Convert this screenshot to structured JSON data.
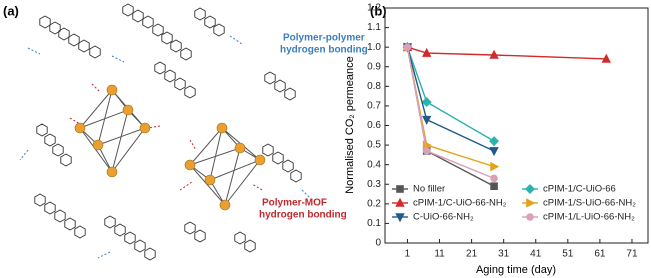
{
  "panel_a": {
    "label": "(a)",
    "annotations": [
      {
        "lines": [
          "Polymer-polymer",
          "hydrogen bonding"
        ],
        "color": "#3a7ec0"
      },
      {
        "lines": [
          "Polymer-MOF",
          "hydrogen bonding"
        ],
        "color": "#c0282c"
      }
    ]
  },
  "chart_data": {
    "type": "line",
    "label": "(b)",
    "x_label": "Aging time (day)",
    "y_label": "Normalised CO₂ permeance",
    "xlim": [
      -6,
      76
    ],
    "xticks": [
      1,
      11,
      21,
      31,
      41,
      51,
      61,
      71
    ],
    "ylim": [
      0,
      1.2
    ],
    "yticks": [
      0,
      0.1,
      0.2,
      0.3,
      0.4,
      0.5,
      0.6,
      0.7,
      0.8,
      0.9,
      {
        "value": 1,
        "label": "1.0"
      },
      1.1,
      1.2
    ],
    "series": [
      {
        "name": "No filler",
        "color": "#555555",
        "marker": "square",
        "x": [
          1,
          7,
          28
        ],
        "values": [
          1.0,
          0.47,
          0.29
        ]
      },
      {
        "name": "cPIM-1/C-UiO-66",
        "color": "#2bb3ad",
        "marker": "diamond",
        "x": [
          1,
          7,
          28
        ],
        "values": [
          1.0,
          0.72,
          0.52
        ]
      },
      {
        "name": "cPIM-1/C-UiO-66-NH₂",
        "color": "#d02a2a",
        "marker": "triangle-up",
        "x": [
          1,
          7,
          28,
          63
        ],
        "values": [
          1.0,
          0.97,
          0.96,
          0.94
        ]
      },
      {
        "name": "cPIM-1/S-UiO-66-NH₂",
        "color": "#e3a21a",
        "marker": "triangle-right",
        "x": [
          1,
          7,
          28
        ],
        "values": [
          1.0,
          0.5,
          0.39
        ]
      },
      {
        "name": "C-UiO-66-NH₂",
        "color": "#1f5a8a",
        "marker": "triangle-down",
        "x": [
          1,
          7,
          28
        ],
        "values": [
          1.0,
          0.63,
          0.47
        ]
      },
      {
        "name": "cPIM-1/L-UiO-66-NH₂",
        "color": "#d9a0ba",
        "marker": "circle",
        "x": [
          1,
          7,
          28
        ],
        "values": [
          1.0,
          0.47,
          0.33
        ]
      }
    ]
  }
}
